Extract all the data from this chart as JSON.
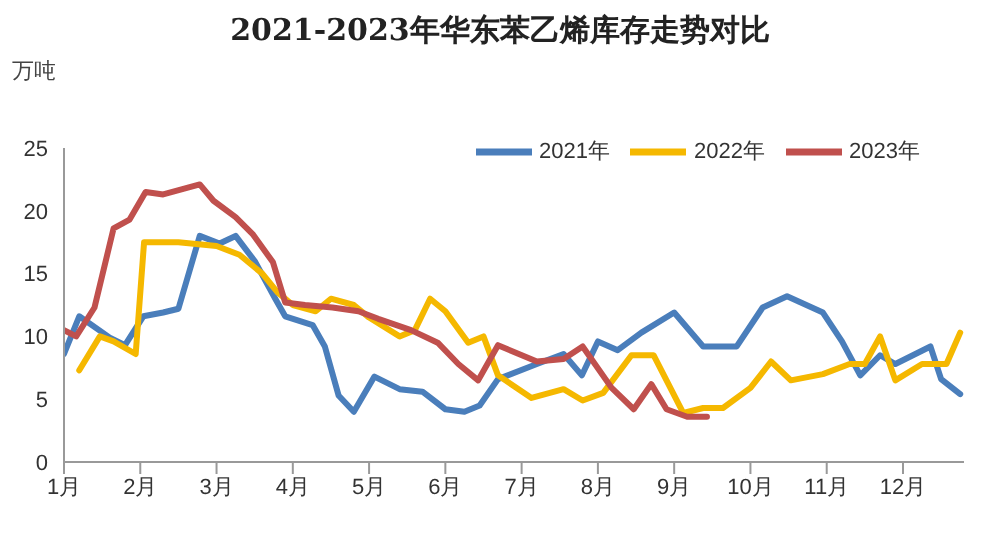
{
  "chart_data": {
    "type": "line",
    "title": "2021-2023年华东苯乙烯库存走势对比",
    "ylabel": "万吨",
    "xlim": [
      1,
      12.8
    ],
    "xticks": [
      {
        "value": 1,
        "label": "1月"
      },
      {
        "value": 2,
        "label": "2月"
      },
      {
        "value": 3,
        "label": "3月"
      },
      {
        "value": 4,
        "label": "4月"
      },
      {
        "value": 5,
        "label": "5月"
      },
      {
        "value": 6,
        "label": "6月"
      },
      {
        "value": 7,
        "label": "7月"
      },
      {
        "value": 8,
        "label": "8月"
      },
      {
        "value": 9,
        "label": "9月"
      },
      {
        "value": 10,
        "label": "10月"
      },
      {
        "value": 11,
        "label": "11月"
      },
      {
        "value": 12,
        "label": "12月"
      }
    ],
    "ylim": [
      0,
      25
    ],
    "yticks": [
      0,
      5,
      10,
      15,
      20,
      25
    ],
    "legend": "top right",
    "marker": "none",
    "line_style": "solid",
    "series": [
      {
        "name": "2021年",
        "color": "#4a7ebb",
        "x": [
          1,
          1.2,
          1.6,
          1.8,
          2.04,
          2.3,
          2.5,
          2.78,
          3.04,
          3.25,
          3.5,
          3.77,
          3.9,
          4.26,
          4.42,
          4.6,
          4.8,
          5.07,
          5.4,
          5.7,
          6.0,
          6.25,
          6.45,
          6.69,
          7.2,
          7.55,
          7.79,
          8.0,
          8.26,
          8.57,
          9.0,
          9.38,
          9.82,
          10.16,
          10.48,
          10.95,
          11.2,
          11.44,
          11.7,
          11.9,
          12.36,
          12.5,
          12.75
        ],
        "values": [
          8.6,
          11.6,
          9.9,
          9.3,
          11.6,
          11.9,
          12.2,
          18,
          17.4,
          18,
          16,
          13,
          11.6,
          10.9,
          9.2,
          5.3,
          4,
          6.8,
          5.8,
          5.6,
          4.2,
          4,
          4.5,
          6.6,
          7.8,
          8.6,
          6.9,
          9.6,
          8.9,
          10.3,
          11.9,
          9.2,
          9.2,
          12.3,
          13.2,
          11.9,
          9.6,
          6.9,
          8.5,
          7.8,
          9.2,
          6.6,
          5.4
        ]
      },
      {
        "name": "2022年",
        "color": "#f5b800",
        "x": [
          1.2,
          1.47,
          1.65,
          1.94,
          2.05,
          2.5,
          3.0,
          3.3,
          3.6,
          3.8,
          4.0,
          4.3,
          4.5,
          4.8,
          5.0,
          5.4,
          5.6,
          5.8,
          6.0,
          6.3,
          6.5,
          6.69,
          7.13,
          7.55,
          7.8,
          8.07,
          8.44,
          8.73,
          9.12,
          9.38,
          9.64,
          10.0,
          10.27,
          10.53,
          10.95,
          11.3,
          11.5,
          11.7,
          11.9,
          12.25,
          12.57,
          12.75
        ],
        "values": [
          7.3,
          10,
          9.6,
          8.6,
          17.5,
          17.5,
          17.2,
          16.5,
          15,
          13.5,
          12.5,
          12,
          13,
          12.5,
          11.5,
          10,
          10.5,
          13,
          12,
          9.5,
          10,
          6.9,
          5.1,
          5.8,
          4.9,
          5.5,
          8.5,
          8.5,
          3.9,
          4.3,
          4.3,
          5.9,
          8,
          6.5,
          7,
          7.8,
          7.8,
          10,
          6.5,
          7.8,
          7.8,
          10.3
        ]
      },
      {
        "name": "2023年",
        "color": "#c0504d",
        "x": [
          1,
          1.16,
          1.4,
          1.65,
          1.86,
          2.07,
          2.3,
          2.78,
          2.96,
          3.25,
          3.48,
          3.74,
          3.9,
          4.16,
          4.52,
          4.86,
          5.12,
          5.55,
          5.9,
          6.17,
          6.43,
          6.69,
          7.2,
          7.55,
          7.8,
          8.18,
          8.47,
          8.7,
          8.9,
          9.17,
          9.43
        ],
        "values": [
          10.5,
          10,
          12.3,
          18.6,
          19.3,
          21.5,
          21.3,
          22.1,
          20.8,
          19.5,
          18.1,
          15.9,
          12.7,
          12.5,
          12.3,
          12,
          11.4,
          10.5,
          9.5,
          7.8,
          6.5,
          9.3,
          8,
          8.2,
          9.2,
          5.9,
          4.2,
          6.2,
          4.2,
          3.6,
          3.6
        ]
      }
    ]
  }
}
